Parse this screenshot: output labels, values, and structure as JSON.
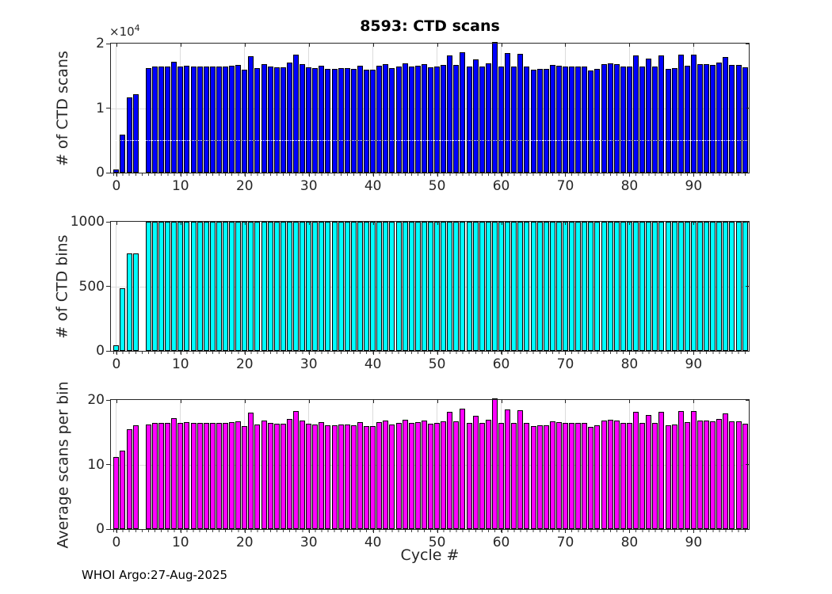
{
  "figure": {
    "title": "8593: CTD scans",
    "xlabel": "Cycle #",
    "footer": "WHOI Argo:27-Aug-2025",
    "exponent": {
      "base": "×10",
      "exp": "4"
    },
    "background": "#ffffff",
    "grid_color": "#dcdcdc",
    "axis_color": "#262626",
    "bar_edge_color": "#000000"
  },
  "chart_data": {
    "type": "bar",
    "x_label": "Cycle #",
    "xlim": [
      -0.85,
      98.6
    ],
    "xtick_values": [
      0,
      10,
      20,
      30,
      40,
      50,
      60,
      70,
      80,
      90
    ],
    "xtick_labels": [
      "0",
      "10",
      "20",
      "30",
      "40",
      "50",
      "60",
      "70",
      "80",
      "90"
    ],
    "x_cycles": [
      0,
      1,
      2,
      3,
      4,
      5,
      6,
      7,
      8,
      9,
      10,
      11,
      12,
      13,
      14,
      15,
      16,
      17,
      18,
      19,
      20,
      21,
      22,
      23,
      24,
      25,
      26,
      27,
      28,
      29,
      30,
      31,
      32,
      33,
      34,
      35,
      36,
      37,
      38,
      39,
      40,
      41,
      42,
      43,
      44,
      45,
      46,
      47,
      48,
      49,
      50,
      51,
      52,
      53,
      54,
      55,
      56,
      57,
      58,
      59,
      60,
      61,
      62,
      63,
      64,
      65,
      66,
      67,
      68,
      69,
      70,
      71,
      72,
      73,
      74,
      75,
      76,
      77,
      78,
      79,
      80,
      81,
      82,
      83,
      84,
      85,
      86,
      87,
      88,
      89,
      90,
      91,
      92,
      93,
      94,
      95,
      96,
      97,
      98
    ],
    "charts": [
      {
        "name": "ctd-scans",
        "title": "8593: CTD scans",
        "ylabel": "# of CTD scans",
        "y_multiplier": "1e4",
        "color": "#0000FF",
        "ylim": [
          0,
          20000
        ],
        "ytick_values": [
          0,
          10000,
          20000
        ],
        "ytick_labels": [
          "0",
          "1",
          "2"
        ],
        "ref_line": {
          "y": 5000,
          "style": "dotted",
          "color": "#ffffff"
        },
        "values": [
          450,
          5900,
          11700,
          12150,
          null,
          16200,
          16400,
          16500,
          16400,
          17200,
          16400,
          16600,
          16400,
          16500,
          16400,
          16500,
          16500,
          16400,
          16600,
          16700,
          15900,
          18100,
          16200,
          16800,
          16400,
          16300,
          16300,
          17100,
          18300,
          16800,
          16300,
          16200,
          16600,
          16100,
          16100,
          16200,
          16200,
          16100,
          16600,
          15900,
          16000,
          16600,
          16800,
          16200,
          16400,
          16900,
          16400,
          16600,
          16800,
          16300,
          16400,
          16700,
          18200,
          16700,
          18600,
          16500,
          17500,
          16500,
          16900,
          20200,
          16400,
          18500,
          16400,
          18400,
          16400,
          16000,
          16100,
          16100,
          16700,
          16600,
          16400,
          16400,
          16400,
          16400,
          15800,
          16100,
          16800,
          16900,
          16800,
          16400,
          16400,
          18200,
          16400,
          17700,
          16500,
          18200,
          16100,
          16200,
          18300,
          16600,
          18300,
          16800,
          16800,
          16700,
          17000,
          17900,
          16700,
          16700,
          16300
        ]
      },
      {
        "name": "ctd-bins",
        "ylabel": "# of CTD bins",
        "color": "#00FFFF",
        "ylim": [
          0,
          1000
        ],
        "ytick_values": [
          0,
          500,
          1000
        ],
        "ytick_labels": [
          "0",
          "500",
          "1000"
        ],
        "values": [
          40,
          485,
          755,
          755,
          null,
          1000,
          1000,
          1000,
          1000,
          1000,
          1000,
          1000,
          1000,
          1000,
          1000,
          1000,
          1000,
          1000,
          1000,
          1000,
          1000,
          1000,
          1000,
          1000,
          1000,
          1000,
          1000,
          1000,
          1000,
          1000,
          1000,
          1000,
          1000,
          1000,
          1000,
          1000,
          1000,
          1000,
          1000,
          1000,
          1000,
          1000,
          1000,
          1000,
          1000,
          1000,
          1000,
          1000,
          1000,
          1000,
          1000,
          1000,
          1000,
          1000,
          1000,
          1000,
          1000,
          1000,
          1000,
          1000,
          1000,
          1000,
          1000,
          1000,
          1000,
          1000,
          1000,
          1000,
          1000,
          1000,
          1000,
          1000,
          1000,
          1000,
          1000,
          1000,
          1000,
          1000,
          1000,
          1000,
          1000,
          1000,
          1000,
          1000,
          1000,
          1000,
          1000,
          1000,
          1000,
          1000,
          1000,
          1000,
          1000,
          1000,
          1000,
          1000,
          1000,
          1000,
          1000
        ]
      },
      {
        "name": "avg-scans-per-bin",
        "ylabel": "Average scans per bin",
        "color": "#FF00FF",
        "ylim": [
          0,
          20
        ],
        "ytick_values": [
          0,
          10,
          20
        ],
        "ytick_labels": [
          "0",
          "10",
          "20"
        ],
        "values": [
          11.2,
          12.2,
          15.5,
          16.1,
          null,
          16.2,
          16.4,
          16.5,
          16.4,
          17.2,
          16.4,
          16.6,
          16.4,
          16.5,
          16.4,
          16.5,
          16.5,
          16.4,
          16.6,
          16.7,
          15.9,
          18.1,
          16.2,
          16.8,
          16.4,
          16.3,
          16.3,
          17.1,
          18.3,
          16.8,
          16.3,
          16.2,
          16.6,
          16.1,
          16.1,
          16.2,
          16.2,
          16.1,
          16.6,
          15.9,
          16.0,
          16.6,
          16.8,
          16.2,
          16.4,
          16.9,
          16.4,
          16.6,
          16.8,
          16.3,
          16.4,
          16.7,
          18.2,
          16.7,
          18.6,
          16.5,
          17.5,
          16.5,
          16.9,
          20.2,
          16.4,
          18.5,
          16.4,
          18.4,
          16.4,
          16.0,
          16.1,
          16.1,
          16.7,
          16.6,
          16.4,
          16.4,
          16.4,
          16.4,
          15.8,
          16.1,
          16.8,
          16.9,
          16.8,
          16.4,
          16.4,
          18.2,
          16.4,
          17.7,
          16.5,
          18.2,
          16.1,
          16.2,
          18.3,
          16.6,
          18.3,
          16.8,
          16.8,
          16.7,
          17.0,
          17.9,
          16.7,
          16.7,
          16.3
        ]
      }
    ]
  }
}
